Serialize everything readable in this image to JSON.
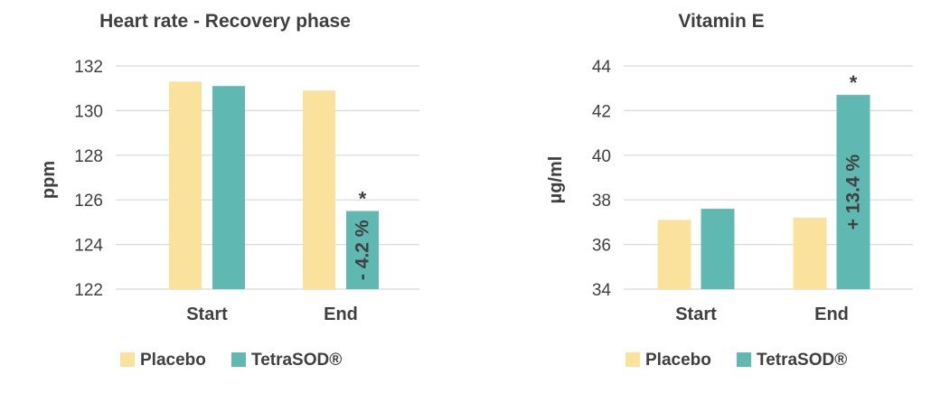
{
  "colors": {
    "placebo": "#FAE29C",
    "tetrasod": "#5FB8B2",
    "text": "#3F3F3F",
    "grid": "#D9D9D9",
    "bar_label": "#404040"
  },
  "chart_data": [
    {
      "type": "bar",
      "title": "Heart rate - Recovery phase",
      "ylabel": "ppm",
      "xlabel": "",
      "categories": [
        "Start",
        "End"
      ],
      "series": [
        {
          "name": "Placebo",
          "values": [
            131.3,
            130.9
          ]
        },
        {
          "name": "TetraSOD®",
          "values": [
            131.1,
            125.5
          ]
        }
      ],
      "ylim": [
        122,
        132
      ],
      "yticks": [
        "122",
        "124",
        "126",
        "128",
        "130",
        "132"
      ],
      "grid": true,
      "legend_position": "bottom",
      "annotations": [
        {
          "category": "End",
          "series": "TetraSOD®",
          "text": "- 4.2 %",
          "orientation": "vertical"
        },
        {
          "category": "End",
          "series": "TetraSOD®",
          "text": "*",
          "orientation": "above"
        }
      ]
    },
    {
      "type": "bar",
      "title": "Vitamin E",
      "ylabel": "µg/ml",
      "xlabel": "",
      "categories": [
        "Start",
        "End"
      ],
      "series": [
        {
          "name": "Placebo",
          "values": [
            37.1,
            37.2
          ]
        },
        {
          "name": "TetraSOD®",
          "values": [
            37.6,
            42.7
          ]
        }
      ],
      "ylim": [
        34,
        44
      ],
      "yticks": [
        "34",
        "36",
        "38",
        "40",
        "42",
        "44"
      ],
      "grid": true,
      "legend_position": "bottom",
      "annotations": [
        {
          "category": "End",
          "series": "TetraSOD®",
          "text": "+ 13.4 %",
          "orientation": "vertical"
        },
        {
          "category": "End",
          "series": "TetraSOD®",
          "text": "*",
          "orientation": "above"
        }
      ]
    }
  ]
}
